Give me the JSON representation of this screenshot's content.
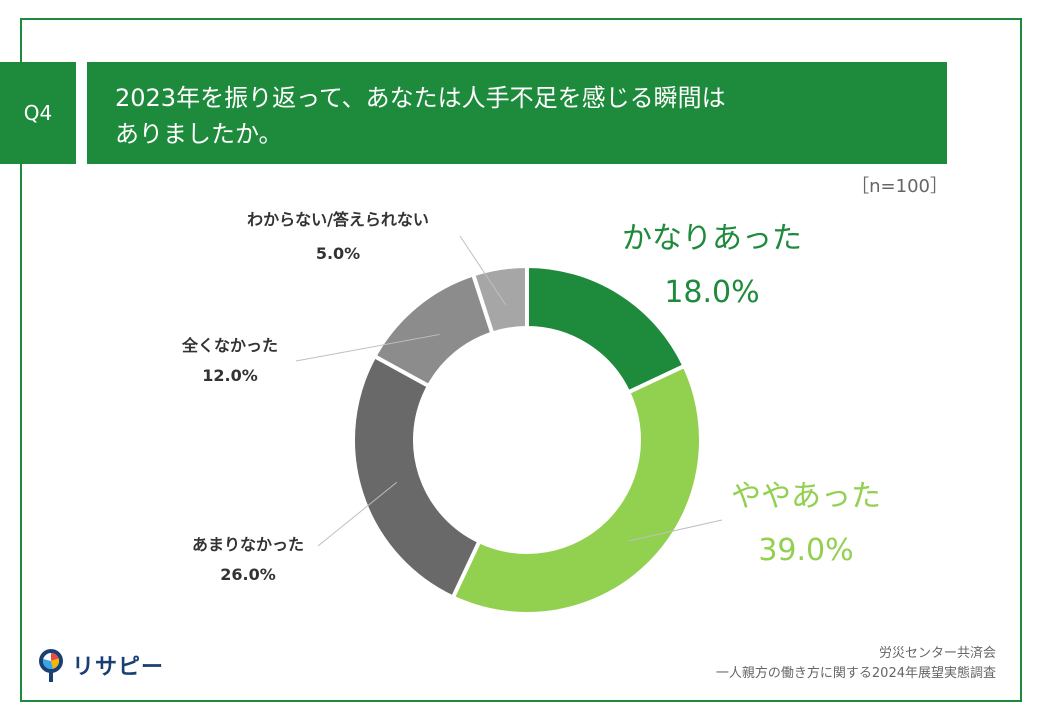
{
  "question": {
    "number": "Q4",
    "title_line1": "2023年を振り返って、あなたは人手不足を感じる瞬間は",
    "title_line2": "ありましたか。"
  },
  "sample_size": "［n=100］",
  "footer": {
    "credit_line1": "労災センター共済会",
    "credit_line2": "一人親方の働き方に関する2024年展望実態調査",
    "logo_text": "リサピー"
  },
  "colors": {
    "brand_green": "#1e8a3c",
    "slice_1": "#1e8a3c",
    "slice_2": "#92d050",
    "slice_3": "#696969",
    "slice_4": "#8c8c8c",
    "slice_5": "#a6a6a6"
  },
  "chart_data": {
    "type": "pie",
    "style": "donut",
    "categories": [
      "かなりあった",
      "ややあった",
      "あまりなかった",
      "全くなかった",
      "わからない/答えられない"
    ],
    "values": [
      18.0,
      39.0,
      26.0,
      12.0,
      5.0
    ],
    "labels": [
      "18.0%",
      "39.0%",
      "26.0%",
      "12.0%",
      "5.0%"
    ],
    "start": "top",
    "direction": "clockwise"
  }
}
